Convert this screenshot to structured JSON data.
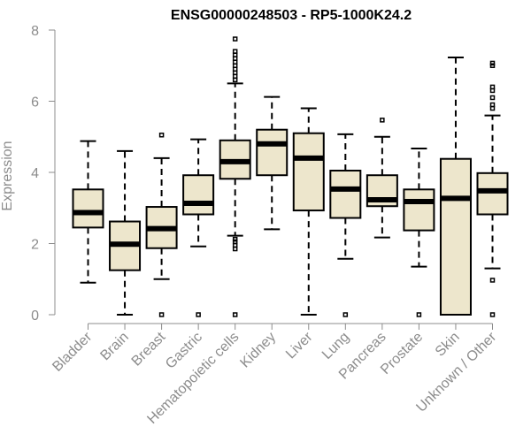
{
  "chart_data": {
    "type": "boxplot",
    "title": "ENSG00000248503 - RP5-1000K24.2",
    "xlabel": "",
    "ylabel": "Expression",
    "ylim": [
      0,
      8
    ],
    "yticks": [
      0,
      2,
      4,
      6,
      8
    ],
    "categories": [
      "Bladder",
      "Brain",
      "Breast",
      "Gastric",
      "Hematopoietic cells",
      "Kidney",
      "Liver",
      "Lung",
      "Pancreas",
      "Prostate",
      "Skin",
      "Unknown / Other"
    ],
    "boxes": [
      {
        "whisker_low": 0.9,
        "q1": 2.45,
        "median": 2.87,
        "q3": 3.52,
        "whisker_high": 4.88,
        "outliers": []
      },
      {
        "whisker_low": 0.0,
        "q1": 1.25,
        "median": 1.98,
        "q3": 2.62,
        "whisker_high": 4.6,
        "outliers": []
      },
      {
        "whisker_low": 1.0,
        "q1": 1.87,
        "median": 2.42,
        "q3": 3.03,
        "whisker_high": 4.4,
        "outliers": [
          0.0,
          5.05
        ]
      },
      {
        "whisker_low": 1.92,
        "q1": 2.82,
        "median": 3.13,
        "q3": 3.92,
        "whisker_high": 4.93,
        "outliers": [
          0.0
        ]
      },
      {
        "whisker_low": 2.22,
        "q1": 3.82,
        "median": 4.3,
        "q3": 4.9,
        "whisker_high": 6.5,
        "outliers": [
          0.0,
          1.85,
          1.95,
          2.05,
          2.12,
          6.6,
          6.7,
          6.8,
          6.9,
          7.0,
          7.1,
          7.2,
          7.3,
          7.4,
          7.75
        ]
      },
      {
        "whisker_low": 2.4,
        "q1": 3.92,
        "median": 4.8,
        "q3": 5.2,
        "whisker_high": 6.12,
        "outliers": []
      },
      {
        "whisker_low": 0.0,
        "q1": 2.93,
        "median": 4.4,
        "q3": 5.1,
        "whisker_high": 5.8,
        "outliers": []
      },
      {
        "whisker_low": 1.57,
        "q1": 2.72,
        "median": 3.53,
        "q3": 4.05,
        "whisker_high": 5.07,
        "outliers": [
          0.0
        ]
      },
      {
        "whisker_low": 2.17,
        "q1": 3.05,
        "median": 3.23,
        "q3": 3.92,
        "whisker_high": 5.0,
        "outliers": [
          5.47
        ]
      },
      {
        "whisker_low": 1.35,
        "q1": 2.37,
        "median": 3.18,
        "q3": 3.52,
        "whisker_high": 4.67,
        "outliers": [
          0.0
        ]
      },
      {
        "whisker_low": 0.0,
        "q1": 0.0,
        "median": 3.27,
        "q3": 4.38,
        "whisker_high": 7.23,
        "outliers": []
      },
      {
        "whisker_low": 1.3,
        "q1": 2.82,
        "median": 3.48,
        "q3": 3.98,
        "whisker_high": 5.6,
        "outliers": [
          0.0,
          0.97,
          5.8,
          5.9,
          6.1,
          6.3,
          6.4,
          7.0,
          7.07
        ]
      }
    ]
  },
  "colors": {
    "box_fill": "#ede6cc",
    "box_stroke": "#000000",
    "axis": "#8c8c8c"
  }
}
